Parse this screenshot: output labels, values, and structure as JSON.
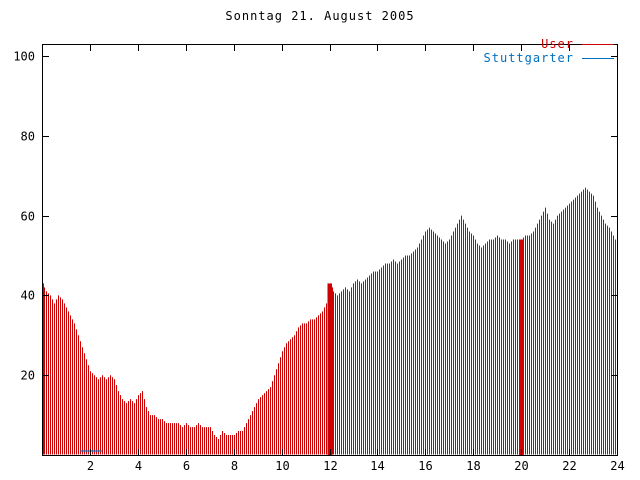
{
  "title": "Sonntag 21. August 2005",
  "legend": {
    "items": [
      {
        "label": "User",
        "color": "#cc0000"
      },
      {
        "label": "Stuttgarter",
        "color": "#0070c0"
      }
    ]
  },
  "chart_data": {
    "type": "bar",
    "style": "impulses",
    "title": "Sonntag 21. August 2005",
    "xlabel": "",
    "ylabel": "",
    "xlim": [
      0,
      24
    ],
    "ylim": [
      0,
      100
    ],
    "x_ticks": [
      2,
      4,
      6,
      8,
      10,
      12,
      14,
      16,
      18,
      20,
      22,
      24
    ],
    "y_ticks": [
      20,
      40,
      60,
      80,
      100
    ],
    "grid": false,
    "legend_position": "top-right",
    "series": [
      {
        "name": "User",
        "color": "#cc0000",
        "x_start": 0,
        "x_step_hours": 0.16667,
        "values": [
          43,
          41,
          40,
          38,
          40,
          39,
          37,
          35,
          33,
          30,
          27,
          24,
          21,
          20,
          19,
          20,
          19,
          20,
          19,
          16,
          14,
          13,
          14,
          13,
          15,
          16,
          12,
          10,
          10,
          9,
          9,
          8,
          8,
          8,
          8,
          7,
          8,
          7,
          7,
          8,
          7,
          7,
          7,
          5,
          4,
          6,
          5,
          5,
          5,
          6,
          6,
          8,
          10,
          12,
          14,
          15,
          16,
          17,
          20,
          23,
          26,
          28,
          29,
          30,
          32,
          33,
          33,
          34,
          34,
          35,
          36,
          38,
          43,
          41,
          40,
          41,
          42,
          41,
          43,
          44,
          43,
          44,
          45,
          46,
          46,
          47,
          48,
          48,
          49,
          48,
          49,
          50,
          50,
          51,
          52,
          54,
          56,
          57,
          56,
          55,
          54,
          53,
          54,
          56,
          58,
          60,
          58,
          56,
          55,
          53,
          52,
          53,
          54,
          54,
          55,
          54,
          54,
          53,
          54,
          54,
          54,
          55,
          55,
          56,
          58,
          60,
          62,
          59,
          58,
          60,
          61,
          62,
          63,
          64,
          65,
          66,
          67,
          66,
          65,
          62,
          60,
          58,
          57,
          55,
          53
        ]
      },
      {
        "name": "Stuttgarter",
        "color": "#0070c0",
        "segments": [
          {
            "from": 1.6,
            "to": 2.5,
            "value": 1
          }
        ]
      }
    ],
    "solid_bursts": [
      {
        "x": 12,
        "value": 43
      },
      {
        "x": 20,
        "value": 54
      }
    ]
  }
}
